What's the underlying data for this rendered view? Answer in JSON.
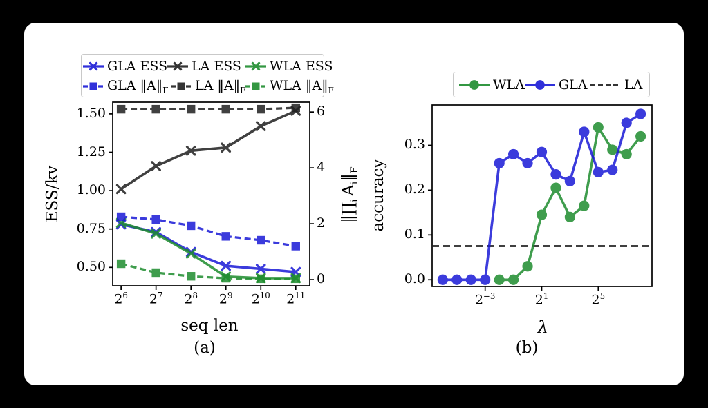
{
  "colors": {
    "blue": "#1a1ad6",
    "green": "#1e8c2e",
    "black": "#1f1f1f",
    "spine": "#000000",
    "legend_border": "#c9c9c9",
    "panel_background": "#ffffff",
    "page_background": "#000000"
  },
  "chart_data": [
    {
      "id": "a",
      "type": "line",
      "caption": "(a)",
      "xlabel": "seq len",
      "ylabel": "ESS/kv",
      "ylabel_right_html": "‖∏<sub>i</sub> A<sub>i</sub>‖<sub>F</sub>",
      "x_scale": "log2",
      "x_tick_base": "2",
      "x_tick_exponents": [
        "6",
        "7",
        "8",
        "9",
        "10",
        "11"
      ],
      "x_tick_values": [
        6,
        7,
        8,
        9,
        10,
        11
      ],
      "xlim": [
        5.76,
        11.4
      ],
      "ylim": [
        0.38,
        1.576
      ],
      "ylim_right": [
        -0.22,
        6.35
      ],
      "y_ticks": [
        {
          "label": "0.50",
          "value": 0.5
        },
        {
          "label": "0.75",
          "value": 0.75
        },
        {
          "label": "1.00",
          "value": 1.0
        },
        {
          "label": "1.25",
          "value": 1.25
        },
        {
          "label": "1.50",
          "value": 1.5
        }
      ],
      "y_ticks_right": [
        {
          "label": "0",
          "value": 0
        },
        {
          "label": "2",
          "value": 2
        },
        {
          "label": "4",
          "value": 4
        },
        {
          "label": "6",
          "value": 6
        }
      ],
      "legend_position": "above",
      "grid": false,
      "series": [
        {
          "label_html": "GLA ESS",
          "color_key": "blue",
          "marker": "x",
          "line": "solid",
          "axis": "left",
          "x": [
            6,
            7,
            8,
            9,
            10,
            11
          ],
          "values": [
            0.78,
            0.73,
            0.6,
            0.51,
            0.49,
            0.47
          ]
        },
        {
          "label_html": "LA ESS",
          "color_key": "black",
          "marker": "x",
          "line": "solid",
          "axis": "left",
          "x": [
            6,
            7,
            8,
            9,
            10,
            11
          ],
          "values": [
            1.01,
            1.16,
            1.26,
            1.28,
            1.42,
            1.52
          ]
        },
        {
          "label_html": "WLA ESS",
          "color_key": "green",
          "marker": "x",
          "line": "solid",
          "axis": "left",
          "x": [
            6,
            7,
            8,
            9,
            10,
            11
          ],
          "values": [
            0.79,
            0.72,
            0.59,
            0.44,
            0.43,
            0.43
          ]
        },
        {
          "label_html": "GLA ‖A‖<sub>F</sub>",
          "color_key": "blue",
          "marker": "square",
          "line": "dashed",
          "axis": "right",
          "x": [
            6,
            7,
            8,
            9,
            10,
            11
          ],
          "values": [
            2.25,
            2.15,
            1.93,
            1.55,
            1.41,
            1.2
          ]
        },
        {
          "label_html": "LA ‖A‖<sub>F</sub>",
          "color_key": "black",
          "marker": "square",
          "line": "dashed",
          "axis": "right",
          "x": [
            6,
            7,
            8,
            9,
            10,
            11
          ],
          "values": [
            6.1,
            6.1,
            6.1,
            6.1,
            6.1,
            6.15
          ]
        },
        {
          "label_html": "WLA ‖A‖<sub>F</sub>",
          "color_key": "green",
          "marker": "square",
          "line": "dashed",
          "axis": "right",
          "x": [
            6,
            7,
            8,
            9,
            10,
            11
          ],
          "values": [
            0.57,
            0.25,
            0.12,
            0.05,
            0.03,
            0.03
          ]
        }
      ]
    },
    {
      "id": "b",
      "type": "line",
      "caption": "(b)",
      "xlabel": "λ",
      "ylabel": "accuracy",
      "x_scale": "log2",
      "x_tick_base": "2",
      "x_tick_exponents": [
        "−3",
        "1",
        "5"
      ],
      "x_tick_values": [
        -3,
        1,
        5
      ],
      "xlim": [
        -6.75,
        8.8
      ],
      "ylim": [
        -0.015,
        0.39
      ],
      "y_ticks": [
        {
          "label": "0.0",
          "value": 0.0
        },
        {
          "label": "0.1",
          "value": 0.1
        },
        {
          "label": "0.2",
          "value": 0.2
        },
        {
          "label": "0.3",
          "value": 0.3
        }
      ],
      "legend_position": "above",
      "grid": false,
      "series": [
        {
          "label_html": "WLA",
          "color_key": "green",
          "marker": "circle",
          "line": "solid",
          "axis": "left",
          "x": [
            -2,
            -1,
            0,
            1,
            2,
            3,
            4,
            5,
            6,
            7,
            8
          ],
          "values": [
            0.0,
            0.0,
            0.03,
            0.145,
            0.205,
            0.14,
            0.165,
            0.34,
            0.29,
            0.28,
            0.32
          ]
        },
        {
          "label_html": "GLA",
          "color_key": "blue",
          "marker": "circle",
          "line": "solid",
          "axis": "left",
          "x": [
            -6,
            -5,
            -4,
            -3,
            -2,
            -1,
            0,
            1,
            2,
            3,
            4,
            5,
            6,
            7,
            8
          ],
          "values": [
            0.0,
            0.0,
            0.0,
            0.0,
            0.26,
            0.28,
            0.26,
            0.285,
            0.235,
            0.22,
            0.33,
            0.24,
            0.245,
            0.35,
            0.37
          ]
        },
        {
          "label_html": "LA",
          "color_key": "black",
          "marker": "none",
          "line": "dashed",
          "axis": "left",
          "hline": 0.075
        }
      ]
    }
  ]
}
